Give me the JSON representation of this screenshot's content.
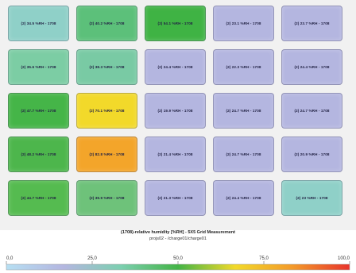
{
  "chart_data": {
    "type": "heatmap",
    "title": "(1708)-relative humidity [%RH] - 5X5 Grid Measurement",
    "subtitle": "projs02 - /charge01/charge01",
    "rows": 5,
    "cols": 5,
    "cells": [
      [
        {
          "value": 34.5,
          "label": "(2) 34.5 %RH - 1708",
          "color": "#8fd0c8"
        },
        {
          "value": 40.2,
          "label": "(2) 40.2 %RH - 1708",
          "color": "#5cc07a"
        },
        {
          "value": 54.1,
          "label": "(2) 54.1 %RH - 1708",
          "color": "#3fb344"
        },
        {
          "value": 23.1,
          "label": "(2) 23.1 %RH - 1708",
          "color": "#b4b6e0"
        },
        {
          "value": 23.7,
          "label": "(2) 23.7 %RH - 1708",
          "color": "#b4b6e0"
        }
      ],
      [
        {
          "value": 35.6,
          "label": "(2) 35.6 %RH - 1708",
          "color": "#7ccda4"
        },
        {
          "value": 38.3,
          "label": "(2) 38.3 %RH - 1708",
          "color": "#79caa4"
        },
        {
          "value": 24.4,
          "label": "(2) 24.4 %RH - 1708",
          "color": "#b4b6e0"
        },
        {
          "value": 22.3,
          "label": "(2) 22.3 %RH - 1708",
          "color": "#b4b6e0"
        },
        {
          "value": 24.4,
          "label": "(2) 24.4 %RH - 1708",
          "color": "#b4b6e0"
        }
      ],
      [
        {
          "value": 47.7,
          "label": "(2) 47.7 %RH - 1708",
          "color": "#45b548"
        },
        {
          "value": 70.1,
          "label": "(2) 70.1 %RH - 1708",
          "color": "#f2d92a"
        },
        {
          "value": 19.9,
          "label": "(2) 19.9 %RH - 1708",
          "color": "#b4b6e0"
        },
        {
          "value": 24.7,
          "label": "(2) 24.7 %RH - 1708",
          "color": "#b4b6e0"
        },
        {
          "value": 24.7,
          "label": "(2) 24.7 %RH - 1708",
          "color": "#b4b6e0"
        }
      ],
      [
        {
          "value": 48.2,
          "label": "(2) 48.2 %RH - 1708",
          "color": "#4db64c"
        },
        {
          "value": 82.8,
          "label": "(2) 82.8 %RH - 1708",
          "color": "#f3a52a"
        },
        {
          "value": 21.4,
          "label": "(2) 21.4 %RH - 1708",
          "color": "#b4b6e0"
        },
        {
          "value": 24.7,
          "label": "(2) 24.7 %RH - 1708",
          "color": "#b4b6e0"
        },
        {
          "value": 20.9,
          "label": "(2) 20.9 %RH - 1708",
          "color": "#b4b6e0"
        }
      ],
      [
        {
          "value": 44.7,
          "label": "(2) 44.7 %RH - 1708",
          "color": "#55bb50"
        },
        {
          "value": 39.9,
          "label": "(2) 39.9 %RH - 1708",
          "color": "#6ec27a"
        },
        {
          "value": 21.3,
          "label": "(2) 21.3 %RH - 1708",
          "color": "#b4b6e0"
        },
        {
          "value": 24.4,
          "label": "(2) 24.4 %RH - 1708",
          "color": "#b4b6e0"
        },
        {
          "value": 23.0,
          "label": "(2) 23 %RH - 1708",
          "color": "#8fd0c8"
        }
      ]
    ],
    "colorscale": {
      "min": 0,
      "max": 100,
      "ticks": [
        "0,0",
        "25,0",
        "50,0",
        "75,0",
        "100,0"
      ],
      "tick_values": [
        0,
        25,
        50,
        75,
        100
      ],
      "stops": [
        "#b6dff2",
        "#b4b6e0",
        "#7ccfb0",
        "#43b446",
        "#f2d92a",
        "#f39a2a",
        "#e8342c"
      ]
    }
  }
}
